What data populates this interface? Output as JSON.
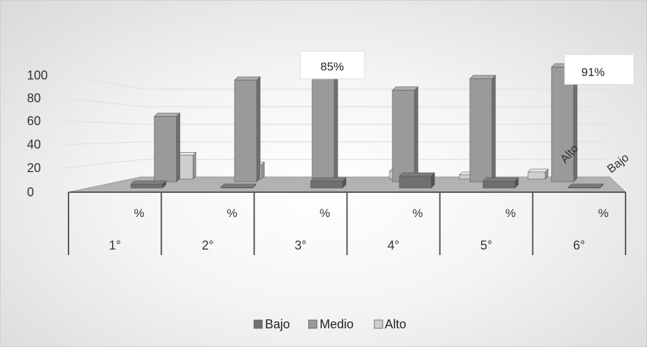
{
  "chart_data": {
    "type": "bar",
    "title": "",
    "xlabel": "",
    "ylabel": "",
    "ylim": [
      0,
      100
    ],
    "yticks": [
      "0",
      "20",
      "40",
      "60",
      "80",
      "100"
    ],
    "categories": [
      "1°",
      "2°",
      "3°",
      "4°",
      "5°",
      "6°"
    ],
    "category_sublabels": [
      "%",
      "%",
      "%",
      "%",
      "%",
      "%"
    ],
    "series": [
      {
        "name": "Bajo",
        "color": "#707070",
        "values": [
          6,
          0,
          11,
          19,
          11,
          0
        ]
      },
      {
        "name": "Medio",
        "color": "#9a9a9a",
        "values": [
          45,
          70,
          73,
          63,
          71,
          79
        ]
      },
      {
        "name": "Alto",
        "color": "#cfcfcf",
        "values": [
          34,
          20,
          1,
          11,
          6,
          10
        ]
      }
    ],
    "data_labels": [
      "85%",
      "91%"
    ],
    "depth_labels": [
      "Alto",
      "Bajo"
    ],
    "legend_position": "bottom",
    "grid": true
  }
}
